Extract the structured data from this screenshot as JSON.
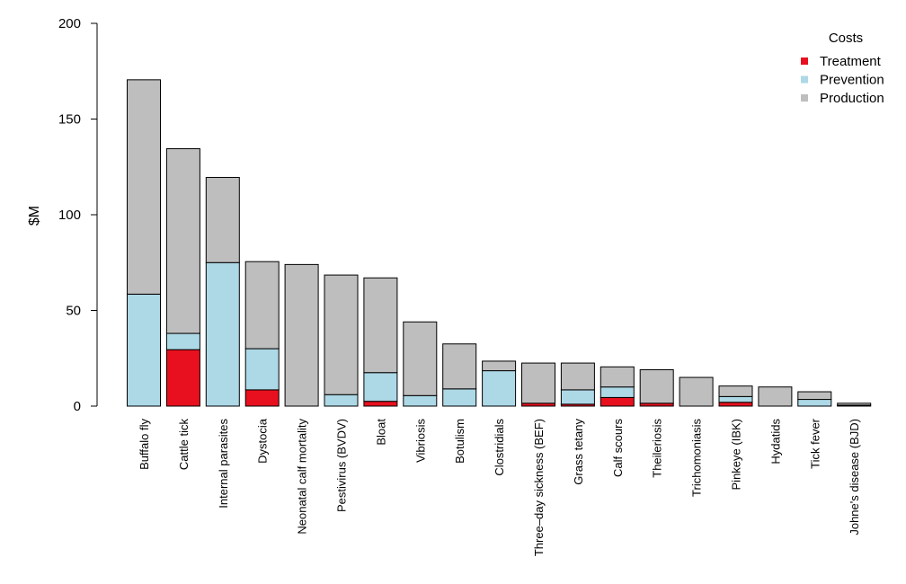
{
  "chart_data": {
    "type": "bar",
    "stacked": true,
    "ylabel": "$M",
    "xlabel": "",
    "title": "",
    "ylim": [
      0,
      200
    ],
    "yticks": [
      0,
      50,
      100,
      150,
      200
    ],
    "grid": false,
    "legend": {
      "title": "Costs",
      "placement": "top-right",
      "entries": [
        "Treatment",
        "Prevention",
        "Production"
      ]
    },
    "categories": [
      "Buffalo fly",
      "Cattle tick",
      "Internal parasites",
      "Dystocia",
      "Neonatal calf mortality",
      "Pestivirus (BVDV)",
      "Bloat",
      "Vibriosis",
      "Botulism",
      "Clostridials",
      "Three–day sickness (BEF)",
      "Grass tetany",
      "Calf scours",
      "Theileriosis",
      "Trichomoniasis",
      "Pinkeye (IBK)",
      "Hydatids",
      "Tick fever",
      "Johne's disease (BJD)"
    ],
    "series": [
      {
        "name": "Treatment",
        "color": "#e8101e",
        "values": [
          0,
          29.5,
          0,
          8.5,
          0,
          0,
          2.5,
          0,
          0,
          0,
          1.5,
          1,
          4.5,
          1.5,
          0,
          2,
          0,
          0,
          0.5
        ]
      },
      {
        "name": "Prevention",
        "color": "#add8e6",
        "values": [
          58.5,
          8.5,
          75,
          21.5,
          0,
          6,
          15,
          5.5,
          9,
          18.5,
          0,
          7.5,
          5.5,
          0,
          0,
          3,
          0,
          3.5,
          0
        ]
      },
      {
        "name": "Production",
        "color": "#bebebe",
        "values": [
          112,
          96.5,
          44.5,
          45.5,
          74,
          62.5,
          49.5,
          38.5,
          23.5,
          5,
          21,
          14,
          10.5,
          17.5,
          15,
          5.5,
          10,
          4,
          1
        ]
      }
    ]
  }
}
